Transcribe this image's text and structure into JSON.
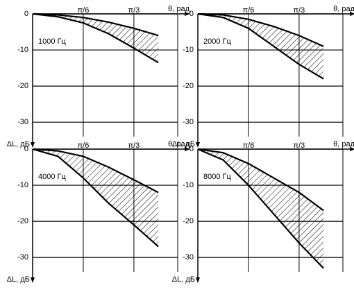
{
  "chart_data": [
    {
      "type": "range",
      "annotation": "1000 Гц",
      "xlabel": "θ, рад",
      "ylabel": "ΔL, дБ",
      "x": [
        0,
        0.2618,
        0.5236,
        0.7854,
        1.0472,
        1.3
      ],
      "series": [
        {
          "color": "#000000",
          "values": [
            0,
            -0.3,
            -1,
            -2.3,
            -4,
            -6
          ]
        },
        {
          "color": "#000000",
          "values": [
            0,
            -0.8,
            -2.5,
            -5.5,
            -9.5,
            -13.5
          ]
        }
      ],
      "xlim": [
        0,
        1.5
      ],
      "ylim": [
        -34,
        0
      ],
      "xticks": [
        {
          "value": 0.5236,
          "label": "π/6"
        },
        {
          "value": 1.0472,
          "label": "π/3"
        }
      ],
      "yticks": [
        0,
        -10,
        -20,
        -30
      ],
      "grid": true
    },
    {
      "type": "range",
      "annotation": "2000 Гц",
      "xlabel": "θ, рад",
      "ylabel": "ΔL, дБ",
      "x": [
        0,
        0.2618,
        0.5236,
        0.7854,
        1.0472,
        1.3
      ],
      "series": [
        {
          "color": "#000000",
          "values": [
            0,
            -0.3,
            -1.5,
            -3.5,
            -6,
            -9
          ]
        },
        {
          "color": "#000000",
          "values": [
            0,
            -1,
            -4,
            -9,
            -14,
            -18
          ]
        }
      ],
      "xlim": [
        0,
        1.5
      ],
      "ylim": [
        -34,
        0
      ],
      "xticks": [
        {
          "value": 0.5236,
          "label": "π/6"
        },
        {
          "value": 1.0472,
          "label": "π/3"
        }
      ],
      "yticks": [
        0,
        -10,
        -20,
        -30
      ],
      "grid": true
    },
    {
      "type": "range",
      "annotation": "4000 Гц",
      "xlabel": "θ, рад",
      "ylabel": "ΔL, дБ",
      "x": [
        0,
        0.2618,
        0.5236,
        0.7854,
        1.0472,
        1.3
      ],
      "series": [
        {
          "color": "#000000",
          "values": [
            0,
            -0.5,
            -2,
            -5,
            -8.5,
            -12
          ]
        },
        {
          "color": "#000000",
          "values": [
            0,
            -2,
            -8,
            -15,
            -21,
            -27
          ]
        }
      ],
      "xlim": [
        0,
        1.5
      ],
      "ylim": [
        -34,
        0
      ],
      "xticks": [
        {
          "value": 0.5236,
          "label": "π/6"
        },
        {
          "value": 1.0472,
          "label": "π/3"
        }
      ],
      "yticks": [
        0,
        -10,
        -20,
        -30
      ],
      "grid": true
    },
    {
      "type": "range",
      "annotation": "8000 Гц",
      "xlabel": "θ, рад",
      "ylabel": "ΔL, дБ",
      "x": [
        0,
        0.2618,
        0.5236,
        0.7854,
        1.0472,
        1.3
      ],
      "series": [
        {
          "color": "#000000",
          "values": [
            0,
            -1,
            -4,
            -8,
            -12,
            -17
          ]
        },
        {
          "color": "#000000",
          "values": [
            0,
            -3,
            -10,
            -18,
            -26,
            -33
          ]
        }
      ],
      "xlim": [
        0,
        1.5
      ],
      "ylim": [
        -34,
        0
      ],
      "xticks": [
        {
          "value": 0.5236,
          "label": "π/6"
        },
        {
          "value": 1.0472,
          "label": "π/3"
        }
      ],
      "yticks": [
        0,
        -10,
        -20,
        -30
      ],
      "grid": true
    }
  ]
}
